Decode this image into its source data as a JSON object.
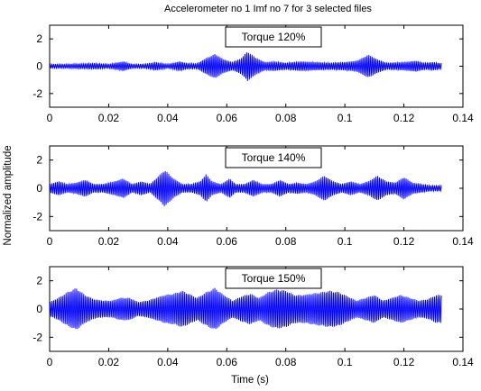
{
  "figure": {
    "title": "Accelerometer no 1 Imf no 7 for 3 selected files",
    "ylabel": "Normalized amplitude",
    "xlabel": "Time (s)"
  },
  "chart_data": [
    {
      "type": "line",
      "legend": "Torque 120%",
      "legend_placement": "top-center",
      "xlim": [
        0,
        0.14
      ],
      "ylim": [
        -3,
        3
      ],
      "xticks": [
        "0",
        "0.02",
        "0.04",
        "0.06",
        "0.08",
        "0.1",
        "0.12",
        "0.14"
      ],
      "yticks": [
        "2",
        "0",
        "-2"
      ],
      "series": [
        {
          "color": "#0000ff",
          "x_end": 0.1328,
          "carrier_period": 0.0006,
          "envelope": [
            [
              0,
              0.15
            ],
            [
              0.005,
              0.15
            ],
            [
              0.01,
              0.18
            ],
            [
              0.015,
              0.22
            ],
            [
              0.02,
              0.15
            ],
            [
              0.025,
              0.35
            ],
            [
              0.028,
              0.15
            ],
            [
              0.032,
              0.15
            ],
            [
              0.036,
              0.3
            ],
            [
              0.04,
              0.15
            ],
            [
              0.044,
              0.35
            ],
            [
              0.047,
              0.2
            ],
            [
              0.05,
              0.2
            ],
            [
              0.053,
              0.6
            ],
            [
              0.056,
              0.9
            ],
            [
              0.059,
              0.5
            ],
            [
              0.062,
              0.3
            ],
            [
              0.065,
              0.6
            ],
            [
              0.067,
              1.1
            ],
            [
              0.07,
              0.6
            ],
            [
              0.073,
              0.3
            ],
            [
              0.076,
              0.35
            ],
            [
              0.08,
              0.25
            ],
            [
              0.085,
              0.35
            ],
            [
              0.09,
              0.3
            ],
            [
              0.095,
              0.25
            ],
            [
              0.1,
              0.3
            ],
            [
              0.104,
              0.4
            ],
            [
              0.108,
              0.85
            ],
            [
              0.111,
              0.5
            ],
            [
              0.114,
              0.25
            ],
            [
              0.12,
              0.3
            ],
            [
              0.124,
              0.4
            ],
            [
              0.127,
              0.25
            ],
            [
              0.13,
              0.3
            ],
            [
              0.1328,
              0.2
            ]
          ]
        }
      ]
    },
    {
      "type": "line",
      "legend": "Torque 140%",
      "legend_placement": "top-center",
      "xlim": [
        0,
        0.14
      ],
      "ylim": [
        -3,
        3
      ],
      "xticks": [
        "0",
        "0.02",
        "0.04",
        "0.06",
        "0.08",
        "0.1",
        "0.12",
        "0.14"
      ],
      "yticks": [
        "2",
        "0",
        "-2"
      ],
      "series": [
        {
          "color": "#0000ff",
          "x_end": 0.1328,
          "carrier_period": 0.0006,
          "envelope": [
            [
              0,
              0.3
            ],
            [
              0.003,
              0.5
            ],
            [
              0.006,
              0.3
            ],
            [
              0.009,
              0.4
            ],
            [
              0.012,
              0.6
            ],
            [
              0.015,
              0.3
            ],
            [
              0.018,
              0.3
            ],
            [
              0.022,
              0.5
            ],
            [
              0.025,
              0.7
            ],
            [
              0.028,
              0.3
            ],
            [
              0.031,
              0.5
            ],
            [
              0.034,
              0.3
            ],
            [
              0.036,
              0.7
            ],
            [
              0.039,
              1.3
            ],
            [
              0.042,
              0.7
            ],
            [
              0.045,
              0.3
            ],
            [
              0.048,
              0.3
            ],
            [
              0.051,
              0.5
            ],
            [
              0.053,
              1.0
            ],
            [
              0.055,
              0.5
            ],
            [
              0.058,
              0.3
            ],
            [
              0.061,
              0.7
            ],
            [
              0.063,
              0.3
            ],
            [
              0.066,
              0.3
            ],
            [
              0.069,
              0.6
            ],
            [
              0.072,
              0.3
            ],
            [
              0.075,
              0.3
            ],
            [
              0.078,
              0.6
            ],
            [
              0.081,
              0.3
            ],
            [
              0.084,
              0.4
            ],
            [
              0.087,
              0.3
            ],
            [
              0.09,
              0.5
            ],
            [
              0.093,
              0.9
            ],
            [
              0.096,
              0.5
            ],
            [
              0.099,
              0.3
            ],
            [
              0.102,
              0.5
            ],
            [
              0.105,
              0.3
            ],
            [
              0.108,
              0.5
            ],
            [
              0.111,
              0.9
            ],
            [
              0.114,
              0.5
            ],
            [
              0.117,
              0.4
            ],
            [
              0.12,
              0.8
            ],
            [
              0.123,
              0.4
            ],
            [
              0.126,
              0.3
            ],
            [
              0.129,
              0.2
            ],
            [
              0.1328,
              0.2
            ]
          ]
        }
      ]
    },
    {
      "type": "line",
      "legend": "Torque 150%",
      "legend_placement": "top-center",
      "xlim": [
        0,
        0.14
      ],
      "ylim": [
        -3,
        3
      ],
      "xticks": [
        "0",
        "0.02",
        "0.04",
        "0.06",
        "0.08",
        "0.1",
        "0.12",
        "0.14"
      ],
      "yticks": [
        "2",
        "0",
        "-2"
      ],
      "series": [
        {
          "color": "#0000ff",
          "x_end": 0.1328,
          "carrier_period": 0.0006,
          "envelope": [
            [
              0,
              0.5
            ],
            [
              0.003,
              0.8
            ],
            [
              0.006,
              1.2
            ],
            [
              0.009,
              1.5
            ],
            [
              0.012,
              1.0
            ],
            [
              0.015,
              0.7
            ],
            [
              0.018,
              0.6
            ],
            [
              0.021,
              0.6
            ],
            [
              0.024,
              0.8
            ],
            [
              0.027,
              0.8
            ],
            [
              0.03,
              0.5
            ],
            [
              0.033,
              0.6
            ],
            [
              0.036,
              0.8
            ],
            [
              0.039,
              1.0
            ],
            [
              0.042,
              1.1
            ],
            [
              0.045,
              1.3
            ],
            [
              0.048,
              1.0
            ],
            [
              0.05,
              0.8
            ],
            [
              0.053,
              1.2
            ],
            [
              0.056,
              1.5
            ],
            [
              0.059,
              1.0
            ],
            [
              0.062,
              0.6
            ],
            [
              0.065,
              0.9
            ],
            [
              0.068,
              1.1
            ],
            [
              0.071,
              0.8
            ],
            [
              0.074,
              1.2
            ],
            [
              0.077,
              1.4
            ],
            [
              0.08,
              1.3
            ],
            [
              0.083,
              1.0
            ],
            [
              0.086,
              1.0
            ],
            [
              0.089,
              1.1
            ],
            [
              0.092,
              1.2
            ],
            [
              0.095,
              1.3
            ],
            [
              0.098,
              1.2
            ],
            [
              0.101,
              0.9
            ],
            [
              0.104,
              0.6
            ],
            [
              0.107,
              0.8
            ],
            [
              0.11,
              1.0
            ],
            [
              0.113,
              0.6
            ],
            [
              0.116,
              0.8
            ],
            [
              0.119,
              1.0
            ],
            [
              0.122,
              0.8
            ],
            [
              0.125,
              0.6
            ],
            [
              0.128,
              0.7
            ],
            [
              0.131,
              1.0
            ],
            [
              0.1328,
              1.0
            ]
          ]
        }
      ]
    }
  ]
}
